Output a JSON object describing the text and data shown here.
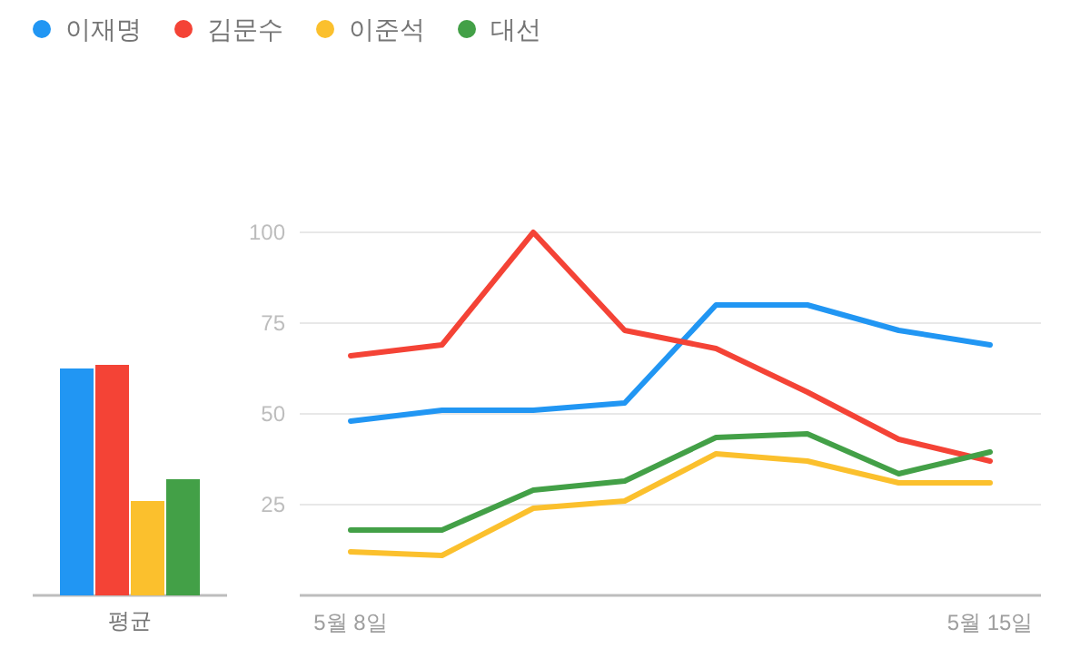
{
  "chart_data": [
    {
      "type": "bar",
      "categories": [
        "평균"
      ],
      "ylim": [
        0,
        100
      ],
      "tick_labels": "x",
      "grid": false,
      "series": [
        {
          "color": "#2196f3",
          "values": [
            62.5
          ]
        },
        {
          "color": "#f44336",
          "values": [
            63.5
          ]
        },
        {
          "color": "#fbc02d",
          "values": [
            26
          ]
        },
        {
          "color": "#43a047",
          "values": [
            32
          ]
        }
      ]
    },
    {
      "type": "line",
      "categories": [
        "5월 8일",
        null,
        null,
        null,
        null,
        null,
        null,
        "5월 15일"
      ],
      "ylim": [
        0,
        100
      ],
      "yticks": [
        25,
        50,
        75,
        100
      ],
      "grid": "y",
      "legend": "top left",
      "series": [
        {
          "name": "이재명",
          "color": "#2196f3",
          "values": [
            48,
            51,
            51,
            53,
            80,
            80,
            73,
            69
          ]
        },
        {
          "name": "김문수",
          "color": "#f44336",
          "values": [
            66,
            69,
            100,
            73,
            68,
            56,
            43,
            37
          ]
        },
        {
          "name": "이준석",
          "color": "#fbc02d",
          "values": [
            12,
            11,
            24,
            26,
            39,
            37,
            31,
            31
          ]
        },
        {
          "name": "대선",
          "color": "#43a047",
          "values": [
            18,
            18,
            29,
            31.5,
            43.5,
            44.5,
            33.5,
            39.5
          ]
        }
      ]
    }
  ]
}
